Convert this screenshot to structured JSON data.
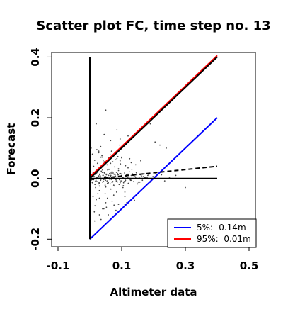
{
  "chart_data": {
    "type": "scatter",
    "title": "Scatter plot FC, time step no. 13",
    "xlabel": "Altimeter data",
    "ylabel": "Forecast",
    "xlim": [
      -0.12,
      0.52
    ],
    "ylim": [
      -0.225,
      0.415
    ],
    "xticks": [
      -0.1,
      0.1,
      0.3,
      0.5
    ],
    "xtick_labels": [
      "-0.1",
      "0.1",
      "0.3",
      "0.5"
    ],
    "yticks": [
      -0.2,
      0.0,
      0.2,
      0.4
    ],
    "ytick_labels": [
      "-0.2",
      "0.0",
      "0.2",
      "0.4"
    ],
    "grid": false,
    "legend_position": "bottom-right",
    "lines": [
      {
        "name": "5%: -0.14m",
        "color": "#0000ff",
        "x": [
          0.0,
          0.4
        ],
        "y": [
          -0.2,
          0.2
        ]
      },
      {
        "name": "95%:  0.01m",
        "color": "#ff0000",
        "x": [
          0.0,
          0.4
        ],
        "y": [
          0.005,
          0.405
        ]
      },
      {
        "name": "",
        "color": "#000000",
        "x": [
          0.0,
          0.4
        ],
        "y": [
          0.0,
          0.4
        ]
      },
      {
        "name": "",
        "color": "#000000",
        "x": [
          0.0,
          0.4
        ],
        "y": [
          0.0,
          0.0
        ]
      },
      {
        "name": "",
        "color": "#000000",
        "x": [
          0.0,
          0.0
        ],
        "y": [
          -0.2,
          0.4
        ]
      },
      {
        "name": "",
        "color": "#000000",
        "dashed": true,
        "x": [
          0.0,
          0.4
        ],
        "y": [
          -0.003,
          0.04
        ]
      }
    ],
    "points_x": [
      0.002,
      0.004,
      0.006,
      0.008,
      0.01,
      0.012,
      0.014,
      0.016,
      0.018,
      0.02,
      0.022,
      0.024,
      0.026,
      0.028,
      0.03,
      0.032,
      0.034,
      0.036,
      0.038,
      0.04,
      0.042,
      0.044,
      0.046,
      0.048,
      0.05,
      0.052,
      0.054,
      0.056,
      0.058,
      0.06,
      0.062,
      0.064,
      0.066,
      0.068,
      0.07,
      0.072,
      0.074,
      0.076,
      0.078,
      0.08,
      0.082,
      0.084,
      0.086,
      0.088,
      0.09,
      0.092,
      0.094,
      0.096,
      0.098,
      0.1,
      0.103,
      0.106,
      0.109,
      0.112,
      0.115,
      0.118,
      0.121,
      0.124,
      0.127,
      0.13,
      0.134,
      0.138,
      0.142,
      0.146,
      0.15,
      0.155,
      0.16,
      0.165,
      0.17,
      0.175,
      0.182,
      0.19,
      0.198,
      0.206,
      0.215,
      0.225,
      0.235,
      0.25,
      0.27,
      0.003,
      0.007,
      0.011,
      0.015,
      0.019,
      0.023,
      0.027,
      0.031,
      0.035,
      0.039,
      0.043,
      0.047,
      0.051,
      0.055,
      0.059,
      0.063,
      0.067,
      0.071,
      0.075,
      0.079,
      0.083,
      0.087,
      0.091,
      0.095,
      0.099,
      0.105,
      0.111,
      0.117,
      0.123,
      0.131,
      0.139,
      0.147,
      0.157,
      0.168,
      0.18,
      0.005,
      0.009,
      0.013,
      0.017,
      0.021,
      0.025,
      0.029,
      0.033,
      0.037,
      0.041,
      0.045,
      0.049,
      0.053,
      0.057,
      0.061,
      0.065,
      0.069,
      0.073,
      0.077,
      0.081,
      0.085,
      0.089,
      0.093,
      0.097,
      0.102,
      0.108,
      0.114,
      0.12,
      0.128,
      0.136,
      0.144,
      0.152,
      0.162,
      0.172,
      0.185,
      0.2,
      0.012,
      0.018,
      0.024,
      0.03,
      0.036,
      0.042,
      0.048,
      0.054,
      0.06,
      0.066,
      0.072,
      0.078,
      0.084,
      0.09,
      0.096,
      0.104,
      0.112,
      0.12,
      0.132,
      0.144,
      0.01,
      0.02,
      0.03,
      0.04,
      0.05,
      0.06,
      0.07,
      0.08,
      0.09,
      0.1,
      0.11,
      0.125,
      0.14,
      0.16,
      0.008,
      0.016,
      0.028,
      0.038,
      0.052,
      0.064,
      0.076,
      0.088,
      0.1,
      0.116,
      0.004,
      0.014,
      0.022,
      0.034,
      0.044,
      0.058,
      0.068,
      0.082,
      0.094,
      0.11,
      0.015,
      0.025,
      0.035,
      0.045,
      0.055,
      0.065,
      0.075,
      0.085,
      0.095,
      0.11,
      0.13,
      0.02,
      0.03,
      0.04,
      0.05,
      0.06,
      0.075,
      0.09,
      0.105,
      0.05,
      0.028,
      0.085,
      0.045,
      0.19,
      0.205,
      0.22,
      0.3,
      0.02,
      0.24,
      0.015,
      0.03,
      0.002,
      0.12,
      0.095,
      0.04,
      0.065,
      0.035
    ],
    "points_y": [
      0.004,
      -0.006,
      0.01,
      -0.014,
      0.018,
      -0.004,
      0.006,
      -0.02,
      0.013,
      0.002,
      -0.01,
      0.02,
      -0.002,
      0.008,
      -0.016,
      0.015,
      -0.006,
      0.024,
      0.0,
      -0.012,
      0.01,
      -0.004,
      0.018,
      -0.022,
      0.006,
      0.012,
      -0.008,
      0.028,
      -0.014,
      0.004,
      0.016,
      -0.018,
      0.01,
      -0.003,
      0.022,
      -0.01,
      0.005,
      0.014,
      -0.025,
      0.008,
      -0.004,
      0.02,
      -0.012,
      0.012,
      0.0,
      -0.02,
      0.016,
      0.006,
      -0.008,
      0.01,
      0.003,
      -0.014,
      0.018,
      -0.006,
      0.012,
      0.002,
      -0.016,
      0.022,
      -0.004,
      0.01,
      0.015,
      -0.01,
      0.006,
      0.02,
      -0.018,
      0.004,
      0.012,
      -0.006,
      0.016,
      0.002,
      0.01,
      -0.012,
      0.006,
      0.018,
      0.0,
      0.012,
      -0.008,
      0.004,
      0.01,
      0.002,
      -0.012,
      0.008,
      0.016,
      -0.006,
      0.004,
      -0.018,
      0.012,
      -0.002,
      0.02,
      -0.01,
      0.006,
      0.014,
      -0.016,
      0.01,
      -0.004,
      0.018,
      -0.012,
      0.004,
      0.012,
      -0.008,
      0.016,
      0.0,
      -0.014,
      0.008,
      0.004,
      -0.01,
      0.014,
      0.002,
      -0.006,
      0.01,
      0.018,
      -0.012,
      0.006,
      0.002,
      0.008,
      -0.004,
      0.012,
      -0.01,
      0.016,
      0.002,
      -0.014,
      0.008,
      -0.002,
      0.01,
      0.02,
      -0.006,
      0.014,
      -0.016,
      0.004,
      0.008,
      -0.012,
      0.018,
      0.0,
      0.006,
      -0.008,
      0.012,
      -0.004,
      0.016,
      0.002,
      -0.01,
      0.006,
      0.014,
      -0.006,
      0.01,
      0.004,
      -0.012,
      0.008,
      0.002,
      0.012,
      0.006,
      0.04,
      -0.03,
      0.05,
      -0.04,
      0.035,
      0.06,
      -0.05,
      0.045,
      0.03,
      -0.035,
      0.055,
      0.038,
      -0.045,
      0.032,
      0.048,
      -0.03,
      0.042,
      0.035,
      0.03,
      0.045,
      -0.06,
      -0.07,
      -0.065,
      0.07,
      -0.08,
      0.068,
      -0.075,
      0.062,
      -0.085,
      0.07,
      -0.06,
      0.065,
      -0.072,
      0.058,
      0.08,
      -0.09,
      0.085,
      0.075,
      -0.095,
      0.078,
      -0.088,
      0.072,
      0.068,
      -0.08,
      0.1,
      -0.11,
      0.095,
      0.105,
      -0.1,
      -0.12,
      0.09,
      -0.105,
      0.11,
      -0.085,
      0.06,
      -0.05,
      0.07,
      0.055,
      -0.065,
      0.05,
      -0.055,
      0.065,
      0.058,
      -0.045,
      0.052,
      0.025,
      -0.025,
      0.028,
      -0.028,
      0.03,
      -0.022,
      0.026,
      -0.024,
      0.225,
      0.09,
      0.16,
      0.145,
      0.18,
      0.12,
      0.11,
      -0.03,
      0.18,
      0.1,
      -0.14,
      -0.12,
      -0.16,
      0.14,
      0.13,
      -0.1,
      0.125,
      -0.135
    ],
    "point_color": "#444444"
  }
}
